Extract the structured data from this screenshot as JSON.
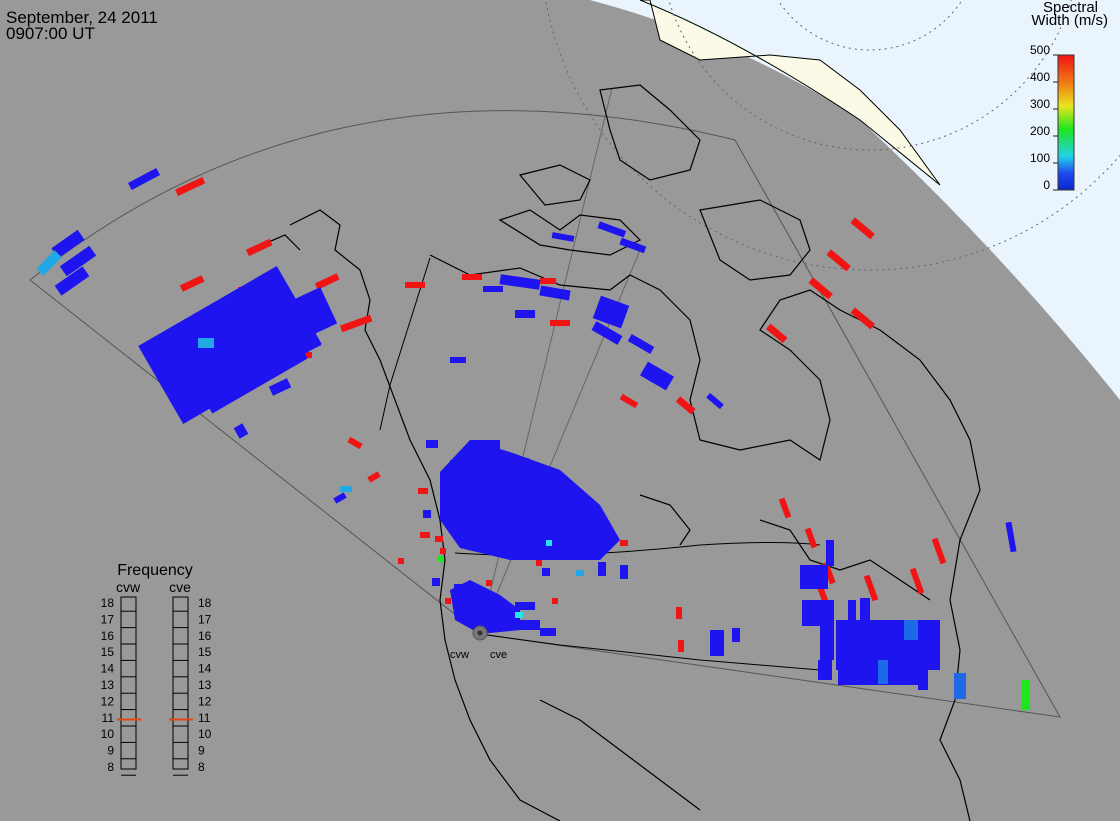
{
  "header": {
    "date": "September, 24 2011",
    "time": "0907:00 UT"
  },
  "colorbar": {
    "title_line1": "Spectral",
    "title_line2": "Width (m/s)",
    "ticks": [
      "500",
      "400",
      "300",
      "200",
      "100",
      "0"
    ],
    "range": [
      0,
      500
    ]
  },
  "frequency_panel": {
    "title": "Frequency",
    "radars": [
      "cvw",
      "cve"
    ],
    "scale": [
      "18",
      "17",
      "16",
      "15",
      "14",
      "13",
      "12",
      "11",
      "10",
      "9",
      "8"
    ],
    "cvw_mhz": 10.9,
    "cve_mhz": 10.9
  },
  "radar_sites": {
    "west_label": "cvw",
    "east_label": "cve"
  },
  "colors": {
    "background": "#999999",
    "land_lines": "#000000",
    "ocean_polar": "#eaf4fc",
    "land_polar": "#fafae6",
    "low_width": "#1e14f0",
    "cyan": "#23a8e6",
    "green": "#1ee61e",
    "high_width": "#f01414",
    "freq_marker": "#e64614"
  }
}
